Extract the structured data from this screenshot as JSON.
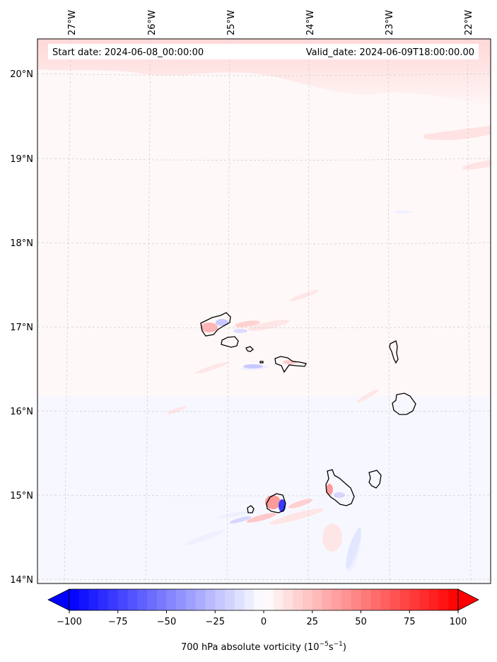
{
  "header": {
    "start_date": "Start date: 2024-06-08_00:00:00",
    "valid_date": "Valid_date: 2024-06-09T18:00:00.00"
  },
  "longitude_labels": [
    "27°W",
    "26°W",
    "25°W",
    "24°W",
    "23°W",
    "22°W"
  ],
  "latitude_labels": [
    "20°N",
    "19°N",
    "18°N",
    "17°N",
    "16°N",
    "15°N",
    "14°N"
  ],
  "colorbar": {
    "min": -100,
    "max": 100,
    "tick_labels": [
      "−100",
      "−75",
      "−50",
      "−25",
      "0",
      "25",
      "50",
      "75",
      "100"
    ],
    "label": "700 hPa absolute vorticity (10",
    "label_exp1": "−5",
    "label_mid": "s",
    "label_exp2": "−1",
    "label_end": ")",
    "low_color": "#0000ff",
    "mid_color": "#ffffff",
    "high_color": "#ff0000"
  },
  "colors": {
    "frame": "#000000",
    "grid": "#cccccc",
    "coast": "#000000"
  }
}
